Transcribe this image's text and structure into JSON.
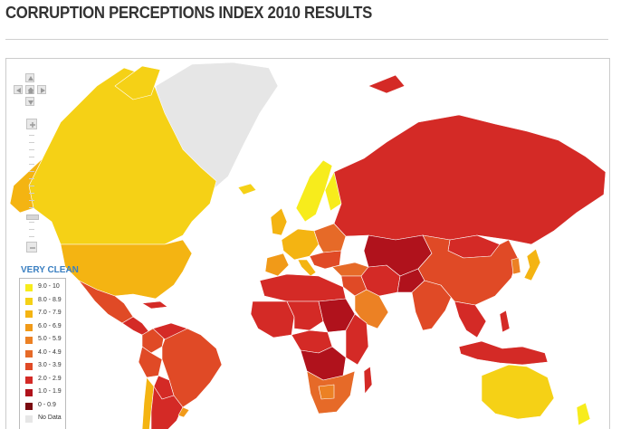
{
  "title": "CORRUPTION PERCEPTIONS INDEX 2010 RESULTS",
  "legend": {
    "title": "VERY CLEAN",
    "items": [
      {
        "label": "9.0 - 10",
        "color": "#f7ec1c"
      },
      {
        "label": "8.0 - 8.9",
        "color": "#f5d116"
      },
      {
        "label": "7.0 - 7.9",
        "color": "#f4b412"
      },
      {
        "label": "6.0 - 6.9",
        "color": "#f19a18"
      },
      {
        "label": "5.0 - 5.9",
        "color": "#ec8124"
      },
      {
        "label": "4.0 - 4.9",
        "color": "#e66a28"
      },
      {
        "label": "3.0 - 3.9",
        "color": "#e04a26"
      },
      {
        "label": "2.0 - 2.9",
        "color": "#d42a26"
      },
      {
        "label": "1.0 - 1.9",
        "color": "#b0121c"
      },
      {
        "label": "0 - 0.9",
        "color": "#7a0a10"
      },
      {
        "label": "No Data",
        "color": "#e6e6e6"
      }
    ]
  },
  "controls": {
    "pan_icons": [
      "pan-up-icon",
      "pan-left-icon",
      "home-icon",
      "pan-right-icon",
      "pan-down-icon"
    ],
    "zoom_icons": [
      "zoom-in-icon",
      "zoom-out-icon"
    ]
  },
  "map_bands": {
    "greenland": "No Data",
    "canada": "8.0 - 8.9",
    "usa": "7.0 - 7.9",
    "mexico": "3.0 - 3.9",
    "central-america": "2.0 - 2.9",
    "colombia": "3.0 - 3.9",
    "venezuela": "2.0 - 2.9",
    "brazil": "3.0 - 3.9",
    "peru": "3.0 - 3.9",
    "bolivia": "2.0 - 2.9",
    "chile": "7.0 - 7.9",
    "argentina": "2.0 - 2.9",
    "uruguay": "6.0 - 6.9",
    "scandinavia": "9.0 - 10",
    "finland": "9.0 - 10",
    "iceland": "8.0 - 8.9",
    "uk-ireland": "7.0 - 7.9",
    "western-europe": "7.0 - 7.9",
    "iberia": "6.0 - 6.9",
    "eastern-europe": "4.0 - 4.9",
    "balkans": "3.0 - 3.9",
    "russia": "2.0 - 2.9",
    "turkey": "4.0 - 4.9",
    "middle-east": "3.0 - 3.9",
    "arabian-gulf": "5.0 - 5.9",
    "iran": "2.0 - 2.9",
    "central-asia": "1.0 - 1.9",
    "afghanistan": "1.0 - 1.9",
    "india": "3.0 - 3.9",
    "china": "3.0 - 3.9",
    "mongolia": "2.0 - 2.9",
    "japan": "7.0 - 7.9",
    "korea": "5.0 - 5.9",
    "southeast-asia": "2.0 - 2.9",
    "indonesia": "2.0 - 2.9",
    "australia": "8.0 - 8.9",
    "new-zealand": "9.0 - 10",
    "north-africa": "2.0 - 2.9",
    "west-africa": "2.0 - 2.9",
    "sahel": "2.0 - 2.9",
    "sudan": "1.0 - 1.9",
    "central-africa": "2.0 - 2.9",
    "congo": "1.0 - 1.9",
    "east-africa": "2.0 - 2.9",
    "southern-africa": "4.0 - 4.9",
    "botswana": "5.0 - 5.9",
    "madagascar": "2.0 - 2.9"
  }
}
